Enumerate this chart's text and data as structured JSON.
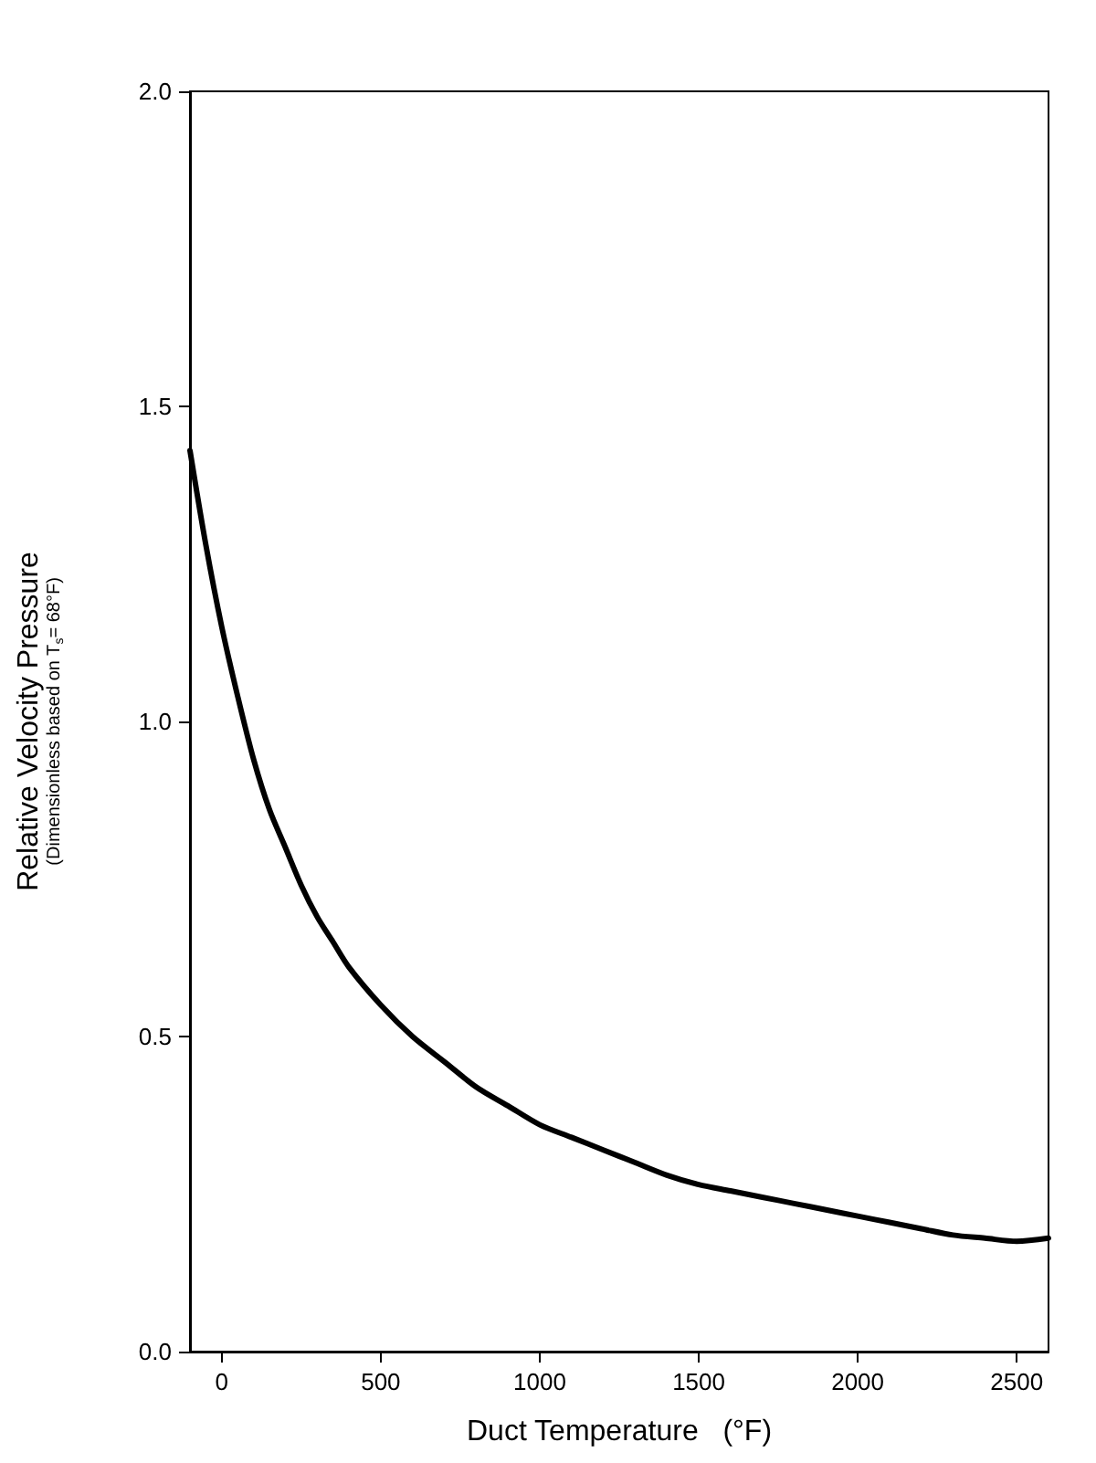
{
  "chart_data": {
    "type": "line",
    "xlabel": "Duct Temperature   (°F)",
    "ylabel": "Relative Velocity Pressure",
    "annotations": [
      "(Dimensionless based on T$_{s}$= 68°F)"
    ],
    "x": [
      -100,
      -50,
      0,
      50,
      100,
      150,
      200,
      250,
      300,
      350,
      400,
      500,
      600,
      700,
      800,
      900,
      1000,
      1100,
      1200,
      1300,
      1400,
      1500,
      1600,
      1700,
      1800,
      1900,
      2000,
      2100,
      2200,
      2300,
      2400,
      2500,
      2600
    ],
    "series": [
      {
        "color": "#000000",
        "values": [
          1.43,
          1.28,
          1.15,
          1.04,
          0.94,
          0.86,
          0.8,
          0.74,
          0.69,
          0.65,
          0.61,
          0.55,
          0.5,
          0.46,
          0.42,
          0.39,
          0.36,
          0.34,
          0.32,
          0.3,
          0.28,
          0.265,
          0.255,
          0.245,
          0.235,
          0.225,
          0.215,
          0.205,
          0.195,
          0.185,
          0.18,
          0.175,
          0.18
        ]
      }
    ],
    "xlim": [
      -100,
      2600
    ],
    "xticks": [
      0,
      500,
      1000,
      1500,
      2000,
      2500
    ],
    "ylim": [
      0,
      2
    ],
    "yticks": [
      {
        "value": 0,
        "label": "0.0"
      },
      0.5,
      {
        "value": 1,
        "label": "1.0"
      },
      1.5,
      {
        "value": 2,
        "label": "2.0"
      }
    ],
    "marker": "none",
    "line_style": "solid"
  }
}
